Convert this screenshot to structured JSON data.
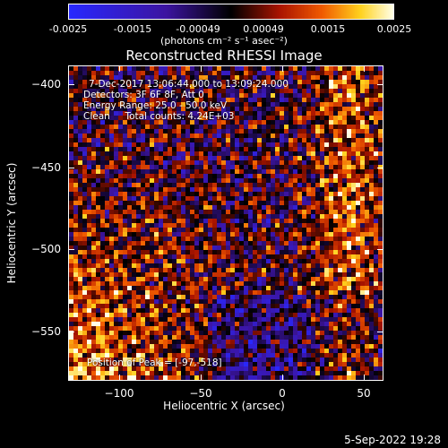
{
  "colorbar": {
    "ticks": [
      "-0.0025",
      "-0.0015",
      "-0.00049",
      "0.00049",
      "0.0015",
      "0.0025"
    ],
    "units": "(photons cm⁻² s⁻¹ asec⁻²)"
  },
  "title": "Reconstructed RHESSI Image",
  "info": {
    "time": "7-Dec-2017 13:06:44.000 to 13:09:24.000",
    "detectors": "Detectors: 3F 6F 8F, Att 0",
    "energy": "Energy Range: 25.0 - 50.0 keV",
    "method": "Clean     Total counts: 4.24E+03",
    "peak": "Position of Peak = [-97,-518]"
  },
  "axes": {
    "xlabel": "Heliocentric X (arcsec)",
    "ylabel": "Heliocentric Y (arcsec)",
    "xticks": [
      "−100",
      "−50",
      "0",
      "50"
    ],
    "yticks": [
      "−400",
      "−450",
      "−500",
      "−550"
    ]
  },
  "footer": {
    "date": "5-Sep-2022 19:28"
  }
}
